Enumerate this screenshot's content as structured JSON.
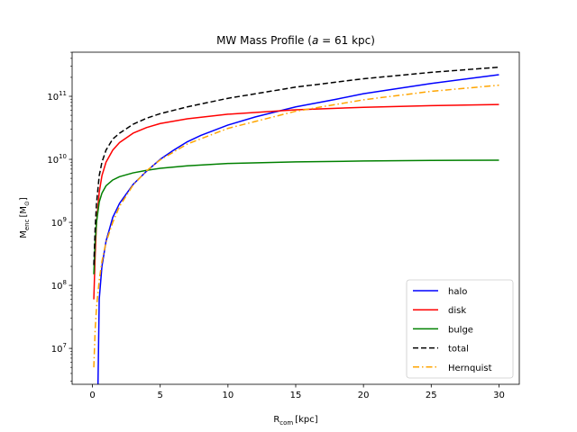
{
  "chart_data": {
    "type": "line",
    "title_prefix": "MW Mass Profile (",
    "title_math": "a",
    "title_suffix": " = 61 kpc)",
    "xlabel_main": "R",
    "xlabel_sub": "com",
    "xlabel_unit": "[kpc]",
    "ylabel_main": "M",
    "ylabel_sub": "enc",
    "ylabel_unit_open": "[M",
    "ylabel_unit_sub": "⊙",
    "ylabel_unit_close": "]",
    "xlim": [
      -1.5,
      31.5
    ],
    "ylim_log10": [
      6.43,
      11.7
    ],
    "y_scale": "log",
    "x_ticks": [
      0,
      5,
      10,
      15,
      20,
      25,
      30
    ],
    "x_tick_labels": [
      "0",
      "5",
      "10",
      "15",
      "20",
      "25",
      "30"
    ],
    "y_ticks_log10": [
      7,
      8,
      9,
      10,
      11
    ],
    "y_tick_labels": [
      "10",
      "10",
      "10",
      "10",
      "10"
    ],
    "y_tick_exponents": [
      "7",
      "8",
      "9",
      "10",
      "11"
    ],
    "legend_position": "lower-right",
    "series": [
      {
        "name": "halo",
        "color": "#0000ff",
        "style": "solid",
        "x": [
          0.4,
          0.5,
          0.7,
          1,
          1.5,
          2,
          3,
          4,
          5,
          6,
          7,
          8,
          10,
          12,
          15,
          18,
          20,
          25,
          30
        ],
        "y": [
          2000000,
          60000000,
          200000000,
          500000000,
          1200000000,
          2000000000,
          4000000000,
          6500000000,
          10000000000,
          14000000000,
          19000000000,
          24000000000,
          35000000000,
          47000000000,
          68000000000,
          90000000000,
          110000000000,
          160000000000,
          220000000000
        ]
      },
      {
        "name": "disk",
        "color": "#ff0000",
        "style": "solid",
        "x": [
          0.1,
          0.2,
          0.3,
          0.5,
          0.7,
          1,
          1.5,
          2,
          3,
          4,
          5,
          7,
          10,
          15,
          20,
          25,
          30
        ],
        "y": [
          60000000,
          300000000,
          1000000000,
          3000000000,
          5500000000,
          9000000000,
          14000000000,
          18500000000,
          26000000000,
          32000000000,
          37000000000,
          44000000000,
          52000000000,
          61000000000,
          67000000000,
          71000000000,
          74000000000
        ]
      },
      {
        "name": "bulge",
        "color": "#008000",
        "style": "solid",
        "x": [
          0.1,
          0.2,
          0.3,
          0.5,
          0.7,
          1,
          1.5,
          2,
          3,
          4,
          5,
          7,
          10,
          15,
          20,
          25,
          30
        ],
        "y": [
          150000000,
          500000000,
          1000000000,
          2100000000,
          2900000000,
          3800000000,
          4700000000,
          5300000000,
          6100000000,
          6700000000,
          7200000000,
          7900000000,
          8600000000,
          9100000000,
          9400000000,
          9600000000,
          9700000000
        ]
      },
      {
        "name": "total",
        "color": "#000000",
        "style": "dashed",
        "x": [
          0.1,
          0.2,
          0.3,
          0.5,
          0.7,
          1,
          1.5,
          2,
          3,
          4,
          5,
          7,
          10,
          15,
          20,
          25,
          30
        ],
        "y": [
          210000000,
          800000000,
          2000000000,
          5500000000,
          9000000000,
          14000000000,
          21000000000,
          26000000000,
          36000000000,
          45000000000,
          53000000000,
          68000000000,
          93000000000,
          140000000000,
          190000000000,
          240000000000,
          290000000000
        ]
      },
      {
        "name": "Hernquist",
        "color": "#ffa500",
        "style": "dashdot",
        "x": [
          0.1,
          0.2,
          0.3,
          0.5,
          0.7,
          1,
          1.5,
          2,
          3,
          4,
          5,
          7,
          10,
          15,
          20,
          25,
          30
        ],
        "y": [
          5000000,
          20000000,
          45000000,
          120000000,
          240000000,
          480000000,
          1000000000,
          1800000000,
          3900000000,
          6600000000,
          9800000000,
          17500000000,
          31000000000,
          58000000000,
          88000000000,
          120000000000,
          150000000000
        ]
      }
    ]
  }
}
